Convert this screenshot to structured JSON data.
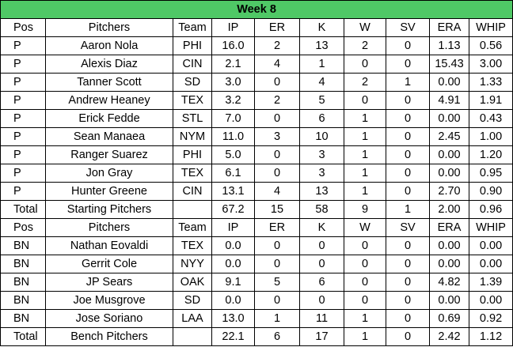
{
  "title": "Week 8",
  "colors": {
    "title_bg": "#4fc866",
    "border": "#000000",
    "cell_bg": "#ffffff"
  },
  "starting_header": [
    "Pos",
    "Pitchers",
    "Team",
    "IP",
    "ER",
    "K",
    "W",
    "SV",
    "ERA",
    "WHIP"
  ],
  "starting": [
    [
      "P",
      "Aaron Nola",
      "PHI",
      "16.0",
      "2",
      "13",
      "2",
      "0",
      "1.13",
      "0.56"
    ],
    [
      "P",
      "Alexis Diaz",
      "CIN",
      "2.1",
      "4",
      "1",
      "0",
      "0",
      "15.43",
      "3.00"
    ],
    [
      "P",
      "Tanner Scott",
      "SD",
      "3.0",
      "0",
      "4",
      "2",
      "1",
      "0.00",
      "1.33"
    ],
    [
      "P",
      "Andrew Heaney",
      "TEX",
      "3.2",
      "2",
      "5",
      "0",
      "0",
      "4.91",
      "1.91"
    ],
    [
      "P",
      "Erick Fedde",
      "STL",
      "7.0",
      "0",
      "6",
      "1",
      "0",
      "0.00",
      "0.43"
    ],
    [
      "P",
      "Sean Manaea",
      "NYM",
      "11.0",
      "3",
      "10",
      "1",
      "0",
      "2.45",
      "1.00"
    ],
    [
      "P",
      "Ranger Suarez",
      "PHI",
      "5.0",
      "0",
      "3",
      "1",
      "0",
      "0.00",
      "1.20"
    ],
    [
      "P",
      "Jon Gray",
      "TEX",
      "6.1",
      "0",
      "3",
      "1",
      "0",
      "0.00",
      "0.95"
    ],
    [
      "P",
      "Hunter Greene",
      "CIN",
      "13.1",
      "4",
      "13",
      "1",
      "0",
      "2.70",
      "0.90"
    ]
  ],
  "starting_total": [
    "Total",
    "Starting Pitchers",
    "",
    "67.2",
    "15",
    "58",
    "9",
    "1",
    "2.00",
    "0.96"
  ],
  "bench_header": [
    "Pos",
    "Pitchers",
    "Team",
    "IP",
    "ER",
    "K",
    "W",
    "SV",
    "ERA",
    "WHIP"
  ],
  "bench": [
    [
      "BN",
      "Nathan Eovaldi",
      "TEX",
      "0.0",
      "0",
      "0",
      "0",
      "0",
      "0.00",
      "0.00"
    ],
    [
      "BN",
      "Gerrit Cole",
      "NYY",
      "0.0",
      "0",
      "0",
      "0",
      "0",
      "0.00",
      "0.00"
    ],
    [
      "BN",
      "JP Sears",
      "OAK",
      "9.1",
      "5",
      "6",
      "0",
      "0",
      "4.82",
      "1.39"
    ],
    [
      "BN",
      "Joe Musgrove",
      "SD",
      "0.0",
      "0",
      "0",
      "0",
      "0",
      "0.00",
      "0.00"
    ],
    [
      "BN",
      "Jose Soriano",
      "LAA",
      "13.0",
      "1",
      "11",
      "1",
      "0",
      "0.69",
      "0.92"
    ]
  ],
  "bench_total": [
    "Total",
    "Bench Pitchers",
    "",
    "22.1",
    "6",
    "17",
    "1",
    "0",
    "2.42",
    "1.12"
  ]
}
